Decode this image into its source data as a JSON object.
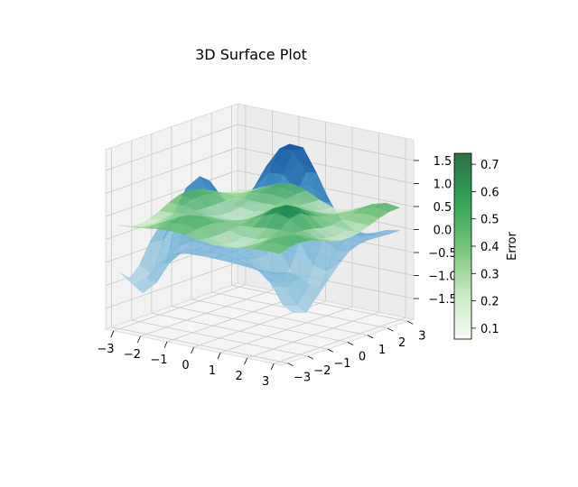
{
  "chart_data": {
    "type": "surface3d",
    "title": "3D Surface Plot",
    "x_ticks": [
      -3,
      -2,
      -1,
      0,
      1,
      2,
      3
    ],
    "y_ticks": [
      -3,
      -2,
      -1,
      0,
      1,
      2,
      3
    ],
    "z_ticks": [
      -1.5,
      -1.0,
      -0.5,
      0.0,
      0.5,
      1.0,
      1.5
    ],
    "z_tick_labels": [
      "−1.5",
      "−1.0",
      "−0.5",
      "0.0",
      "0.5",
      "1.0",
      "1.5"
    ],
    "x_tick_labels": [
      "−3",
      "−2",
      "−1",
      "0",
      "1",
      "2",
      "3"
    ],
    "y_tick_labels": [
      "−3",
      "−2",
      "−1",
      "0",
      "1",
      "2",
      "3"
    ],
    "xlim": [
      -3.3,
      3.3
    ],
    "ylim": [
      -3.3,
      3.3
    ],
    "zlim": [
      -1.95,
      1.95
    ],
    "surface_colormap": "Blues",
    "error_colormap": "Greens",
    "colorbar": {
      "label": "Error",
      "ticks": [
        0.1,
        0.2,
        0.3,
        0.4,
        0.5,
        0.6,
        0.7
      ],
      "tick_labels": [
        "0.1",
        "0.2",
        "0.3",
        "0.4",
        "0.5",
        "0.6",
        "0.7"
      ],
      "range": [
        0.06,
        0.74
      ]
    },
    "grid": true
  }
}
